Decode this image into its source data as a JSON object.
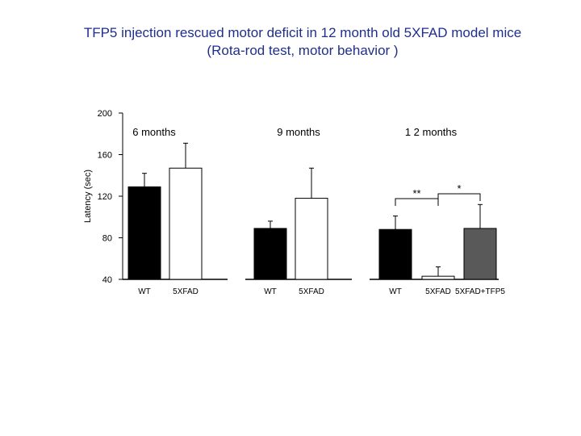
{
  "chart_data": {
    "type": "bar",
    "title": "TFP5 injection rescued motor deficit in 12 month old 5XFAD model mice",
    "subtitle": "(Rota-rod test, motor behavior )",
    "ylabel": "Latency (sec)",
    "ylim": [
      40,
      200
    ],
    "yticks": [
      40,
      80,
      120,
      160,
      200
    ],
    "grid": false,
    "groups": [
      {
        "label": "6 months",
        "bars": [
          {
            "category": "WT",
            "value": 129,
            "error": 13,
            "color": "#000000"
          },
          {
            "category": "5XFAD",
            "value": 147,
            "error": 24,
            "color": "#ffffff"
          }
        ]
      },
      {
        "label": "9 months",
        "bars": [
          {
            "category": "WT",
            "value": 89,
            "error": 7,
            "color": "#000000"
          },
          {
            "category": "5XFAD",
            "value": 118,
            "error": 29,
            "color": "#ffffff"
          }
        ]
      },
      {
        "label": "1 2 months",
        "bars": [
          {
            "category": "WT",
            "value": 88,
            "error": 13,
            "color": "#000000"
          },
          {
            "category": "5XFAD",
            "value": 43,
            "error": 9,
            "color": "#ffffff"
          },
          {
            "category": "5XFAD+TFP5",
            "value": 89,
            "error": 23,
            "color": "#595959"
          }
        ]
      }
    ],
    "annotations": [
      {
        "text": "**",
        "from_group": 2,
        "from_bar": 0,
        "to_bar": 1
      },
      {
        "text": "*",
        "from_group": 2,
        "from_bar": 1,
        "to_bar": 2
      }
    ]
  }
}
